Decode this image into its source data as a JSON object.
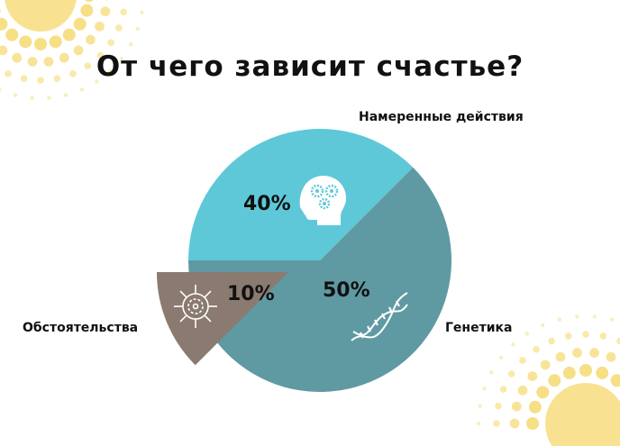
{
  "title": "От чего зависит счастье?",
  "chart_data": {
    "type": "pie",
    "title": "От чего зависит счастье?",
    "slices": [
      {
        "label": "Намеренные действия",
        "value": 40,
        "display": "40%",
        "color": "#5ec8d8",
        "icon": "head-gears-icon"
      },
      {
        "label": "Генетика",
        "value": 50,
        "display": "50%",
        "color": "#5f9aa3",
        "icon": "dna-icon"
      },
      {
        "label": "Обстоятельства",
        "value": 10,
        "display": "10%",
        "color": "#8a7a6f",
        "icon": "virus-icon",
        "exploded": true
      }
    ]
  },
  "colors": {
    "sun": "#f7df86",
    "text": "#111111"
  }
}
